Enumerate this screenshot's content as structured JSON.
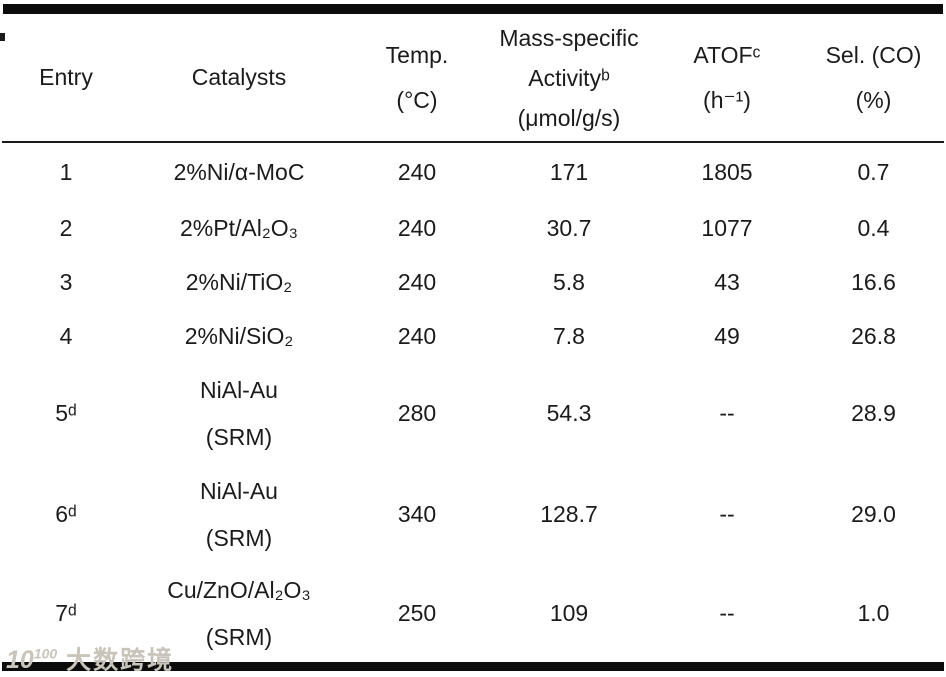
{
  "table": {
    "header": {
      "entry": {
        "l1": "Entry"
      },
      "catalysts": {
        "l1": "Catalysts"
      },
      "temp": {
        "l1": "Temp.",
        "l2": "(°C)"
      },
      "activity": {
        "l1": "Mass-specific",
        "l2": "Activityᵇ",
        "l3": "(μmol/g/s)"
      },
      "atof": {
        "l1": "ATOFᶜ",
        "l2": "(h⁻¹)"
      },
      "sel": {
        "l1": "Sel. (CO)",
        "l2": "(%)"
      }
    },
    "rows": [
      {
        "entry": "1",
        "cat1": "2%Ni/α-MoC",
        "temp": "240",
        "activity": "171",
        "atof": "1805",
        "sel": "0.7"
      },
      {
        "entry": "2",
        "cat1": "2%Pt/Al₂O₃",
        "temp": "240",
        "activity": "30.7",
        "atof": "1077",
        "sel": "0.4"
      },
      {
        "entry": "3",
        "cat1": "2%Ni/TiO₂",
        "temp": "240",
        "activity": "5.8",
        "atof": "43",
        "sel": "16.6"
      },
      {
        "entry": "4",
        "cat1": "2%Ni/SiO₂",
        "temp": "240",
        "activity": "7.8",
        "atof": "49",
        "sel": "26.8"
      },
      {
        "entry": "5ᵈ",
        "cat1": "NiAl-Au",
        "cat2": "(SRM)",
        "temp": "280",
        "activity": "54.3",
        "atof": "--",
        "sel": "28.9"
      },
      {
        "entry": "6ᵈ",
        "cat1": "NiAl-Au",
        "cat2": "(SRM)",
        "temp": "340",
        "activity": "128.7",
        "atof": "--",
        "sel": "29.0"
      },
      {
        "entry": "7ᵈ",
        "cat1": "Cu/ZnO/Al₂O₃",
        "cat2": "(SRM)",
        "temp": "250",
        "activity": "109",
        "atof": "--",
        "sel": "1.0"
      }
    ]
  },
  "watermark": {
    "logo_base": "10",
    "logo_exp": "100",
    "text": "大数跨境"
  }
}
